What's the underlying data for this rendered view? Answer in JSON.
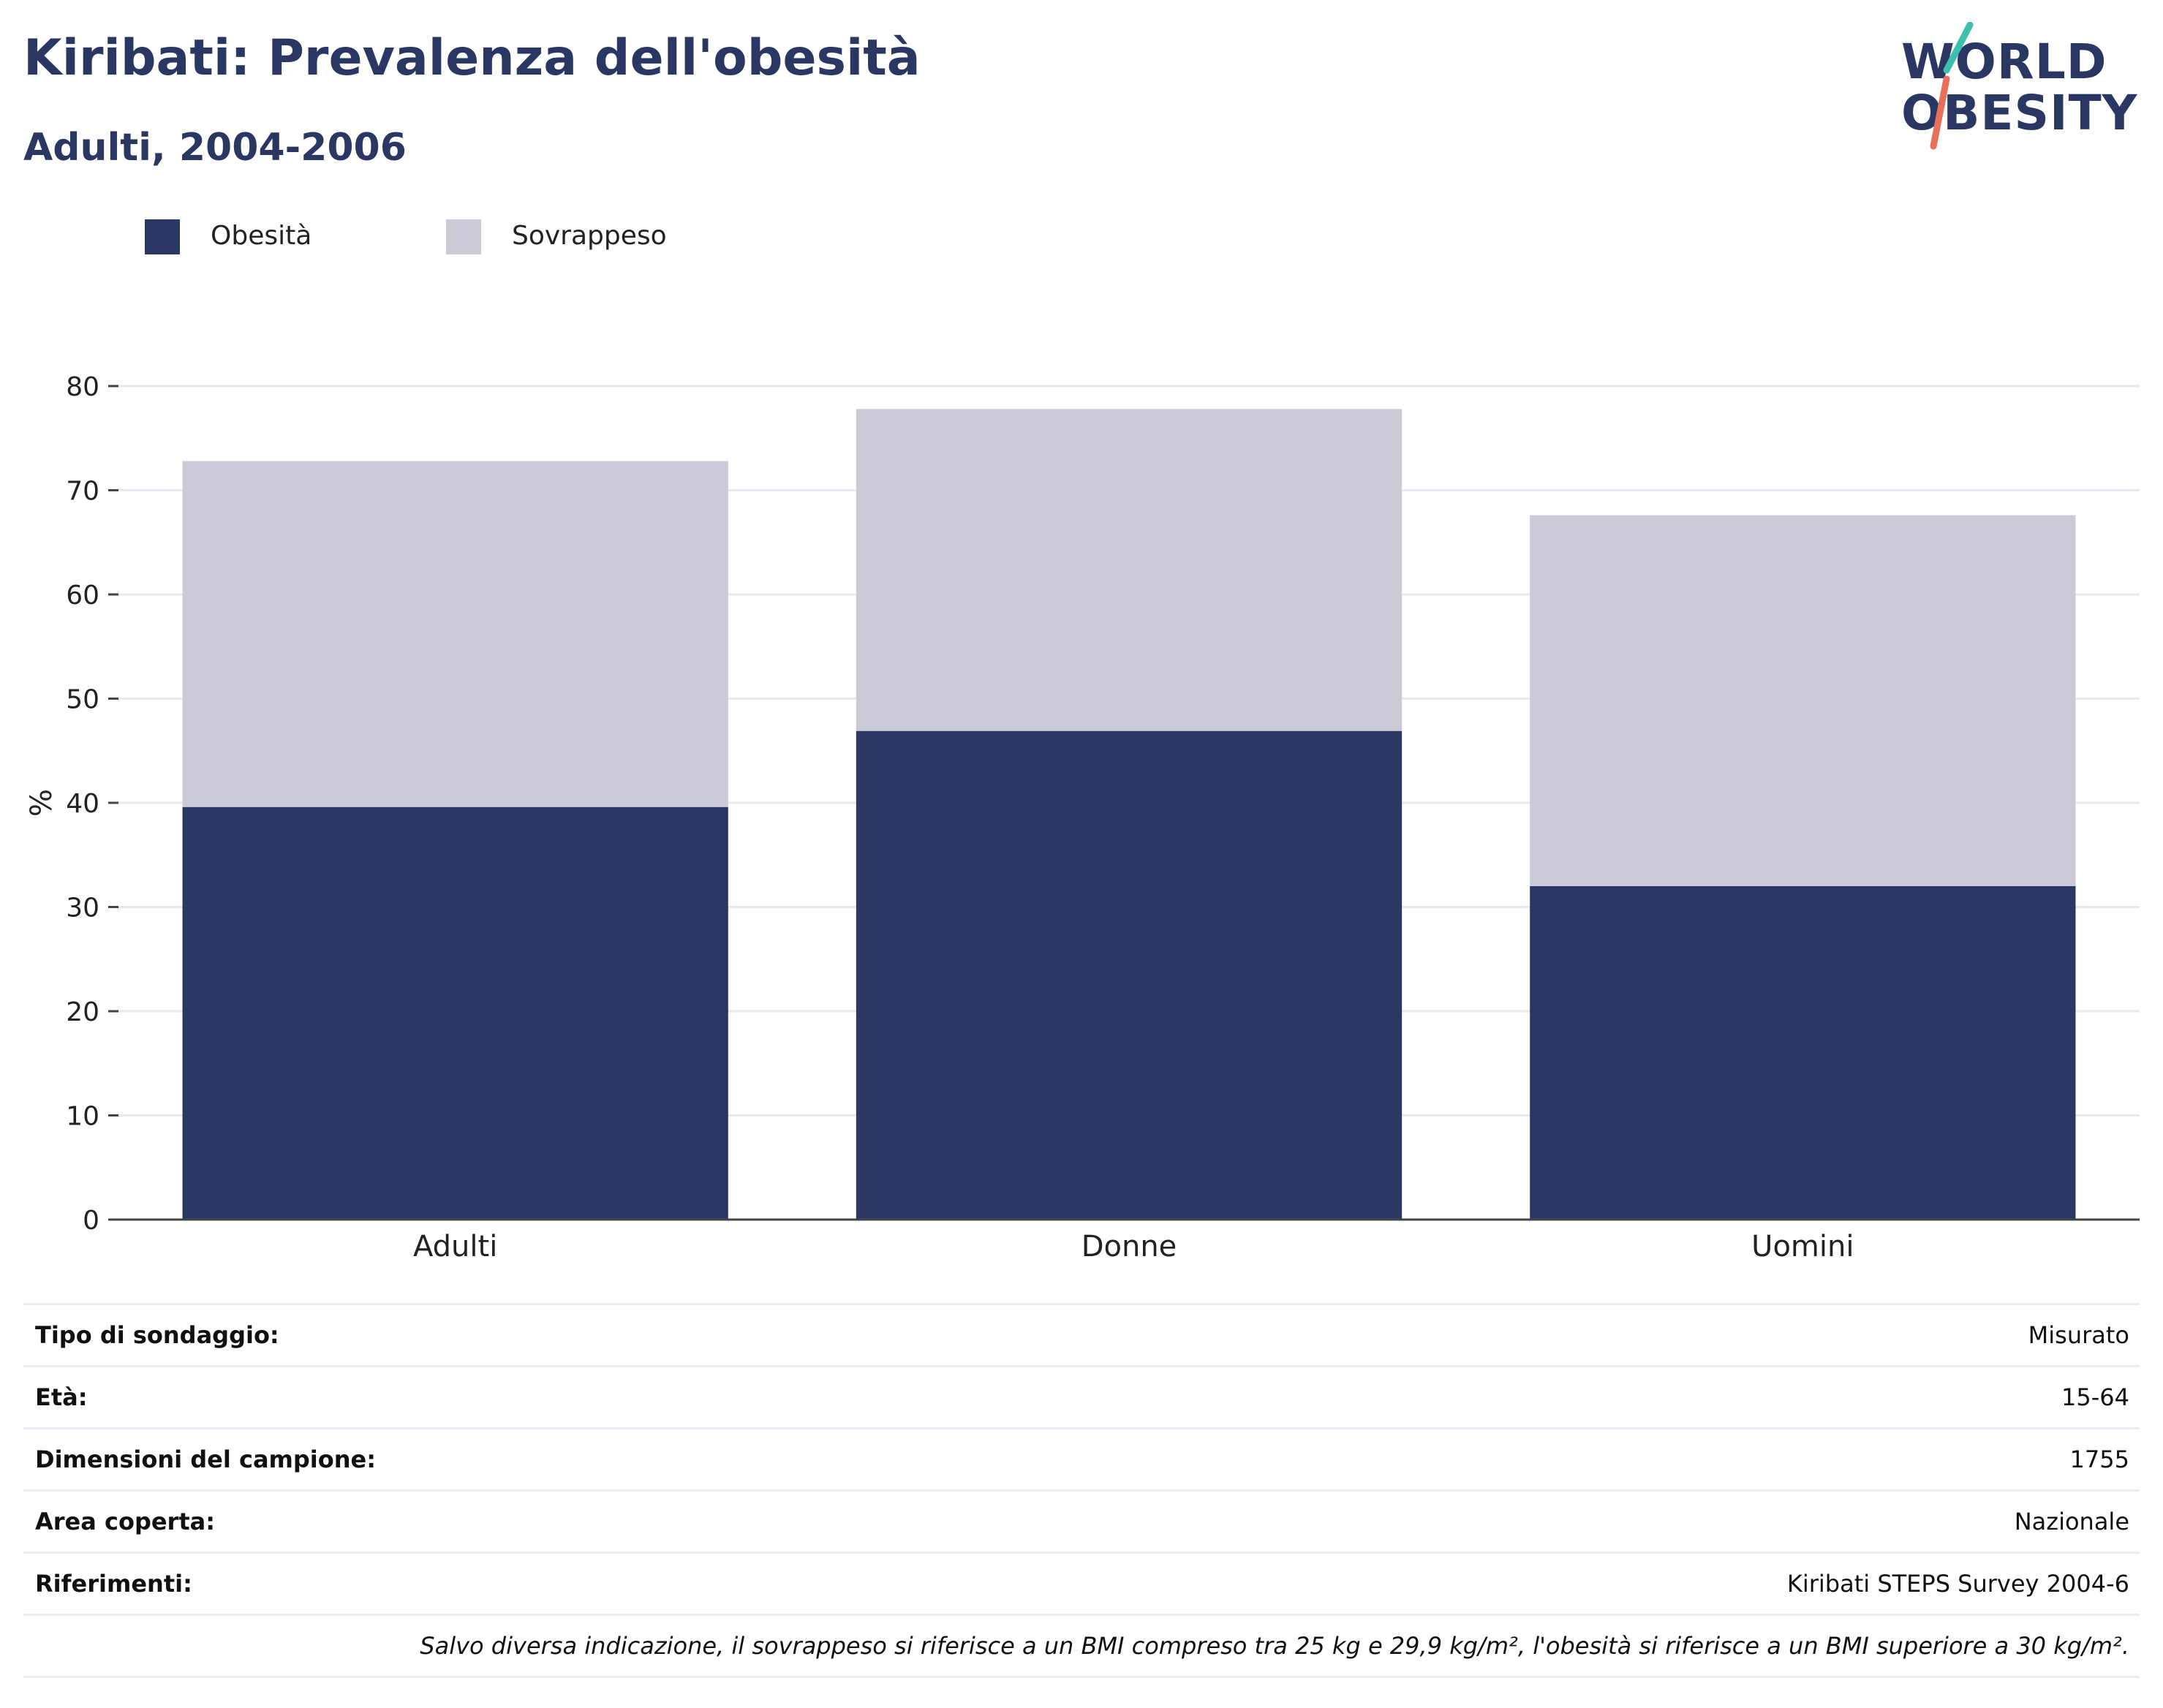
{
  "header": {
    "title": "Kiribati: Prevalenza dell'obesità",
    "subtitle": "Adulti, 2004-2006"
  },
  "logo": {
    "line1": "WORLD",
    "line2": "OBESITY",
    "accent_colors": [
      "#3cbfae",
      "#e8705a"
    ]
  },
  "colors": {
    "obesity": "#2a3763",
    "overweight": "#cacbd7",
    "text": "#2a3763",
    "grid": "#e8e9ee",
    "axis": "#444444"
  },
  "legend": [
    {
      "label": "Obesità",
      "color": "#2a3763"
    },
    {
      "label": "Sovrappeso",
      "color": "#cacbd7"
    }
  ],
  "chart_data": {
    "type": "bar",
    "stacked": true,
    "categories": [
      "Adulti",
      "Donne",
      "Uomini"
    ],
    "series": [
      {
        "name": "Obesità",
        "values": [
          39.6,
          46.9,
          32.0
        ]
      },
      {
        "name": "Sovrappeso",
        "values": [
          33.2,
          30.9,
          35.6
        ]
      }
    ],
    "totals": [
      72.8,
      77.8,
      67.6
    ],
    "ylabel": "%",
    "ylim": [
      0,
      80
    ],
    "yticks": [
      0,
      10,
      20,
      30,
      40,
      50,
      60,
      70,
      80
    ],
    "grid": true,
    "legend_position": "top-left"
  },
  "info": {
    "rows": [
      {
        "key": "Tipo di sondaggio:",
        "value": "Misurato"
      },
      {
        "key": "Età:",
        "value": "15-64"
      },
      {
        "key": "Dimensioni del campione:",
        "value": "1755"
      },
      {
        "key": "Area coperta:",
        "value": "Nazionale"
      },
      {
        "key": "Riferimenti:",
        "value": "Kiribati STEPS Survey 2004-6"
      }
    ],
    "note": "Salvo diversa indicazione, il sovrappeso si riferisce a un BMI compreso tra 25 kg e 29,9 kg/m², l'obesità si riferisce a un BMI superiore a 30 kg/m²."
  }
}
